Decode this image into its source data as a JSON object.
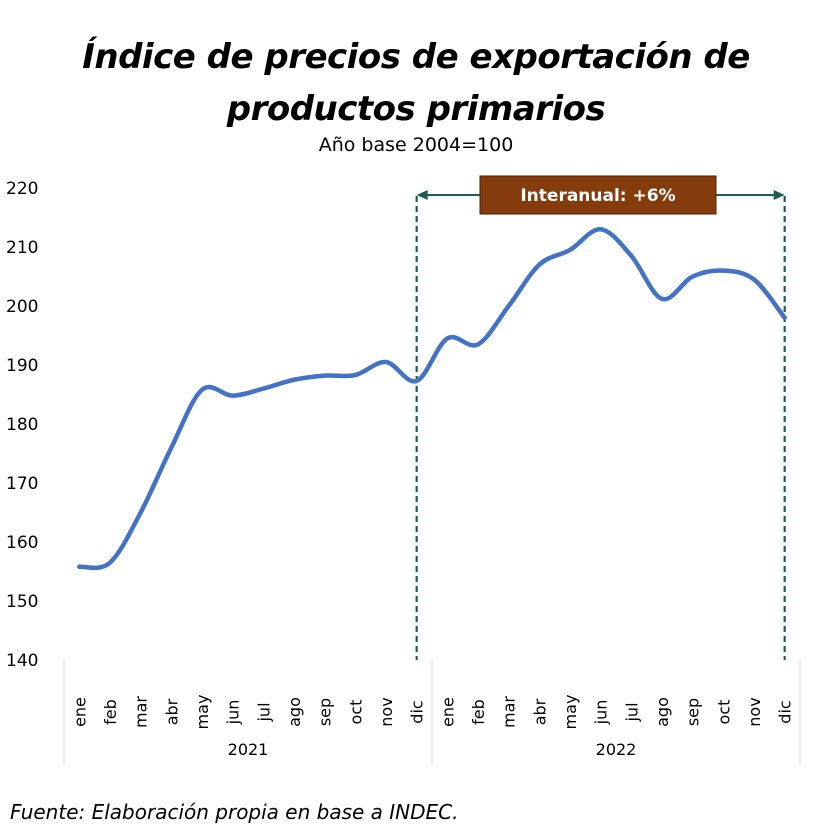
{
  "chart_data": {
    "type": "line",
    "title": "Índice de precios de exportación de productos primarios",
    "title_line1": "Índice de precios de exportación de",
    "title_line2": "productos primarios",
    "subtitle": "Año base 2004=100",
    "source": "Fuente: Elaboración propia en base a INDEC.",
    "ylim": [
      140,
      220
    ],
    "yticks": [
      140,
      150,
      160,
      170,
      180,
      190,
      200,
      210,
      220
    ],
    "grid": false,
    "months": [
      "ene",
      "feb",
      "mar",
      "abr",
      "may",
      "jun",
      "jul",
      "ago",
      "sep",
      "oct",
      "nov",
      "dic"
    ],
    "years": [
      "2021",
      "2022"
    ],
    "series": [
      {
        "color": "#4472C4",
        "values": [
          155.8,
          156.5,
          165.0,
          176.0,
          185.8,
          184.8,
          186.0,
          187.5,
          188.2,
          188.3,
          190.5,
          187.3,
          194.5,
          193.5,
          200.0,
          207.0,
          209.5,
          213.0,
          208.5,
          201.2,
          205.0,
          206.0,
          204.5,
          198.0
        ]
      }
    ],
    "annotation": {
      "label": "Interanual: +6%",
      "from": "dic 2021",
      "to": "dic 2022",
      "box_color": "#843C0C",
      "line_color": "#1F5C55"
    }
  }
}
